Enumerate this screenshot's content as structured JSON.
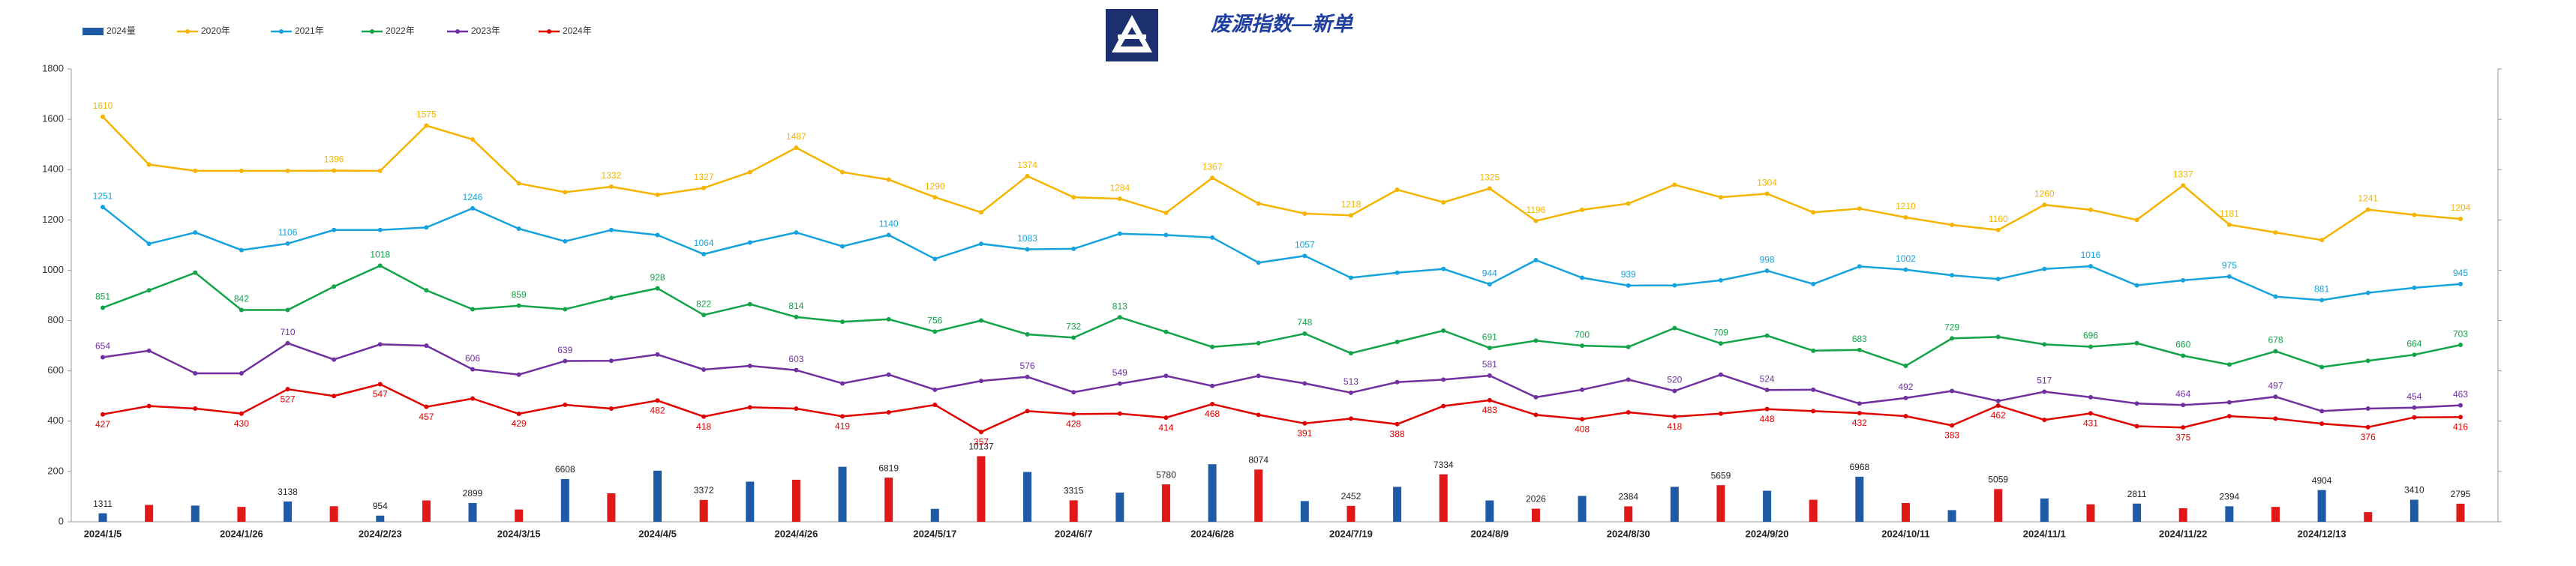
{
  "chart_data": {
    "type": "combo",
    "title": "废源指数—新单",
    "categories": [
      "2024/1/5",
      null,
      null,
      "2024/1/26",
      null,
      null,
      "2024/2/23",
      null,
      null,
      "2024/3/15",
      null,
      null,
      "2024/4/5",
      null,
      null,
      "2024/4/26",
      null,
      null,
      "2024/5/17",
      null,
      null,
      "2024/6/7",
      null,
      null,
      "2024/6/28",
      null,
      null,
      "2024/7/19",
      null,
      null,
      "2024/8/9",
      null,
      null,
      "2024/8/30",
      null,
      null,
      "2024/9/20",
      null,
      null,
      "2024/10/11",
      null,
      null,
      "2024/11/1",
      null,
      null,
      "2024/11/22",
      null,
      null,
      "2024/12/13",
      null,
      null,
      null
    ],
    "ylim": [
      0,
      1800
    ],
    "yticks": [
      0,
      200,
      400,
      600,
      800,
      1000,
      1200,
      1400,
      1600,
      1800
    ],
    "y2lim": [
      0,
      70000
    ],
    "grid": false,
    "series": [
      {
        "name": "2024量",
        "type": "bar",
        "axis": "y2",
        "colors": [
          "#1f5aa6",
          "#e01818"
        ],
        "values": [
          1311,
          2600,
          2500,
          2300,
          3138,
          2400,
          954,
          3300,
          2899,
          1900,
          6608,
          4400,
          7900,
          3372,
          6200,
          6500,
          8500,
          6819,
          2000,
          10137,
          7700,
          3315,
          4500,
          5780,
          8900,
          8074,
          3200,
          2452,
          5400,
          7334,
          3300,
          2026,
          4000,
          2384,
          5400,
          5659,
          4800,
          3400,
          6968,
          2900,
          1800,
          5059,
          3600,
          2700,
          2811,
          2100,
          2394,
          2300,
          4904,
          1500,
          3410,
          2795
        ],
        "labeled": [
          0,
          4,
          6,
          8,
          10,
          13,
          17,
          19,
          21,
          23,
          25,
          27,
          29,
          31,
          33,
          35,
          38,
          41,
          44,
          46,
          48,
          50,
          51
        ]
      },
      {
        "name": "2020年",
        "type": "line",
        "color": "#f5b400",
        "values": [
          1610,
          1420,
          1395,
          1395,
          1395,
          1396,
          1395,
          1575,
          1520,
          1345,
          1310,
          1332,
          1300,
          1327,
          1390,
          1487,
          1390,
          1360,
          1290,
          1230,
          1374,
          1290,
          1284,
          1228,
          1367,
          1265,
          1225,
          1218,
          1320,
          1270,
          1325,
          1196,
          1240,
          1265,
          1340,
          1290,
          1304,
          1230,
          1245,
          1210,
          1180,
          1160,
          1260,
          1240,
          1200,
          1337,
          1181,
          1150,
          1120,
          1241,
          1220,
          1204
        ],
        "labeled": [
          0,
          5,
          7,
          11,
          13,
          15,
          18,
          20,
          22,
          24,
          27,
          30,
          31,
          36,
          39,
          41,
          42,
          45,
          46,
          49,
          51
        ]
      },
      {
        "name": "2021年",
        "type": "line",
        "color": "#16a2dc",
        "values": [
          1251,
          1105,
          1150,
          1080,
          1106,
          1160,
          1160,
          1170,
          1246,
          1165,
          1115,
          1160,
          1140,
          1064,
          1110,
          1150,
          1095,
          1140,
          1045,
          1105,
          1083,
          1085,
          1145,
          1140,
          1130,
          1030,
          1057,
          970,
          990,
          1005,
          944,
          1040,
          970,
          939,
          940,
          960,
          998,
          945,
          1015,
          1002,
          980,
          965,
          1005,
          1016,
          940,
          960,
          975,
          895,
          881,
          910,
          930,
          945
        ],
        "labeled": [
          0,
          4,
          8,
          13,
          17,
          20,
          26,
          30,
          33,
          36,
          39,
          43,
          46,
          48,
          51
        ]
      },
      {
        "name": "2022年",
        "type": "line",
        "color": "#13a349",
        "values": [
          851,
          920,
          990,
          842,
          842,
          935,
          1018,
          920,
          845,
          859,
          845,
          890,
          928,
          822,
          865,
          814,
          795,
          805,
          756,
          800,
          745,
          732,
          813,
          755,
          695,
          710,
          748,
          670,
          715,
          760,
          691,
          720,
          700,
          695,
          770,
          709,
          740,
          680,
          683,
          620,
          729,
          735,
          705,
          696,
          710,
          660,
          625,
          678,
          615,
          640,
          664,
          703
        ],
        "labeled": [
          0,
          3,
          6,
          9,
          12,
          13,
          15,
          18,
          21,
          22,
          26,
          30,
          32,
          35,
          38,
          40,
          43,
          45,
          47,
          50,
          51
        ]
      },
      {
        "name": "2023年",
        "type": "line",
        "color": "#7030a0",
        "values": [
          654,
          680,
          590,
          590,
          710,
          645,
          705,
          700,
          606,
          585,
          639,
          640,
          665,
          605,
          620,
          603,
          550,
          585,
          525,
          560,
          576,
          515,
          549,
          580,
          540,
          580,
          550,
          513,
          555,
          565,
          581,
          495,
          525,
          565,
          520,
          585,
          524,
          525,
          470,
          492,
          520,
          480,
          517,
          495,
          470,
          464,
          475,
          497,
          440,
          450,
          454,
          463
        ],
        "labeled": [
          0,
          4,
          8,
          10,
          15,
          20,
          22,
          27,
          30,
          34,
          36,
          39,
          42,
          45,
          47,
          50,
          51
        ]
      },
      {
        "name": "2024年",
        "type": "line",
        "color": "#e00000",
        "values": [
          427,
          460,
          450,
          430,
          527,
          500,
          547,
          457,
          490,
          429,
          465,
          450,
          482,
          418,
          455,
          450,
          419,
          435,
          465,
          357,
          440,
          428,
          430,
          414,
          468,
          425,
          391,
          410,
          388,
          460,
          483,
          425,
          408,
          435,
          418,
          430,
          448,
          440,
          432,
          420,
          383,
          462,
          405,
          431,
          380,
          375,
          420,
          410,
          390,
          376,
          415,
          416
        ],
        "labeled": [
          0,
          3,
          4,
          6,
          7,
          9,
          12,
          13,
          16,
          19,
          21,
          23,
          24,
          26,
          28,
          30,
          32,
          34,
          36,
          38,
          40,
          41,
          43,
          45,
          49,
          51
        ]
      }
    ]
  }
}
